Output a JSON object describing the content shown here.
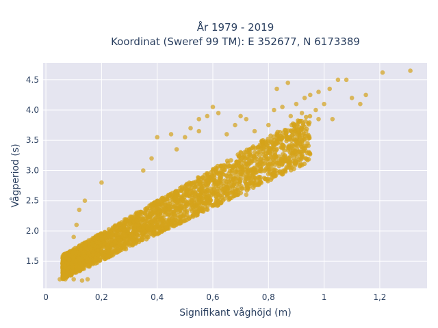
{
  "chart_data": {
    "type": "scatter",
    "title": "År 1979 - 2019",
    "subtitle": "Koordinat (Sweref 99 TM): E 352677, N 6173389",
    "xlabel": "Signifikant våghöjd (m)",
    "ylabel": "Vågperiod (s)",
    "xlim": [
      -0.01,
      1.37
    ],
    "ylim": [
      1.05,
      4.78
    ],
    "x_ticks": [
      0,
      0.2,
      0.4,
      0.6,
      0.8,
      1,
      1.2
    ],
    "x_tick_labels": [
      "0",
      "0,2",
      "0,4",
      "0,6",
      "0,8",
      "1",
      "1,2"
    ],
    "y_ticks": [
      1.5,
      2.0,
      2.5,
      3.0,
      3.5,
      4.0,
      4.5
    ],
    "y_tick_labels": [
      "1.5",
      "2.0",
      "2.5",
      "3.0",
      "3.5",
      "4.0",
      "4.5"
    ],
    "grid": true,
    "marker_color": "#d4a31b",
    "background_color": "#e5e5f0",
    "points": [
      [
        0.05,
        1.2
      ],
      [
        0.07,
        1.2
      ],
      [
        0.1,
        1.2
      ],
      [
        0.13,
        1.18
      ],
      [
        0.15,
        1.2
      ],
      [
        0.06,
        1.45
      ],
      [
        0.06,
        1.55
      ],
      [
        0.08,
        1.62
      ],
      [
        0.1,
        1.9
      ],
      [
        0.11,
        2.1
      ],
      [
        0.12,
        2.35
      ],
      [
        0.14,
        2.5
      ],
      [
        0.2,
        2.8
      ],
      [
        0.2,
        1.65
      ],
      [
        0.25,
        1.75
      ],
      [
        0.3,
        1.9
      ],
      [
        0.35,
        3.0
      ],
      [
        0.38,
        3.2
      ],
      [
        0.4,
        3.55
      ],
      [
        0.42,
        2.1
      ],
      [
        0.47,
        3.35
      ],
      [
        0.5,
        3.55
      ],
      [
        0.52,
        3.7
      ],
      [
        0.5,
        2.4
      ],
      [
        0.55,
        3.65
      ],
      [
        0.58,
        3.9
      ],
      [
        0.62,
        3.95
      ],
      [
        0.62,
        2.6
      ],
      [
        0.65,
        3.6
      ],
      [
        0.68,
        3.75
      ],
      [
        0.7,
        3.3
      ],
      [
        0.72,
        3.85
      ],
      [
        0.75,
        3.65
      ],
      [
        0.78,
        3.5
      ],
      [
        0.8,
        3.75
      ],
      [
        0.82,
        4.0
      ],
      [
        0.85,
        4.05
      ],
      [
        0.88,
        3.9
      ],
      [
        0.9,
        4.1
      ],
      [
        0.92,
        3.95
      ],
      [
        0.95,
        4.25
      ],
      [
        0.98,
        4.3
      ],
      [
        1.0,
        4.1
      ],
      [
        1.02,
        4.35
      ],
      [
        1.05,
        4.5
      ],
      [
        1.08,
        4.5
      ],
      [
        1.1,
        4.2
      ],
      [
        1.13,
        4.1
      ],
      [
        1.15,
        4.25
      ],
      [
        1.21,
        4.62
      ],
      [
        1.31,
        4.65
      ],
      [
        0.83,
        4.35
      ],
      [
        0.87,
        4.45
      ],
      [
        0.93,
        4.2
      ],
      [
        0.97,
        4.0
      ],
      [
        0.45,
        3.6
      ],
      [
        0.7,
        3.9
      ],
      [
        0.98,
        3.85
      ],
      [
        1.03,
        3.85
      ],
      [
        0.82,
        2.9
      ],
      [
        0.9,
        3.15
      ],
      [
        0.75,
        2.8
      ],
      [
        0.65,
        2.6
      ],
      [
        0.72,
        2.6
      ],
      [
        0.92,
        3.2
      ],
      [
        0.6,
        4.05
      ],
      [
        0.55,
        3.85
      ]
    ],
    "density_bands": [
      {
        "x_start": 0.06,
        "x_end": 0.95,
        "y_low_start": 1.2,
        "y_low_end": 3.15,
        "y_high_start": 1.6,
        "y_high_end": 3.95
      }
    ]
  }
}
